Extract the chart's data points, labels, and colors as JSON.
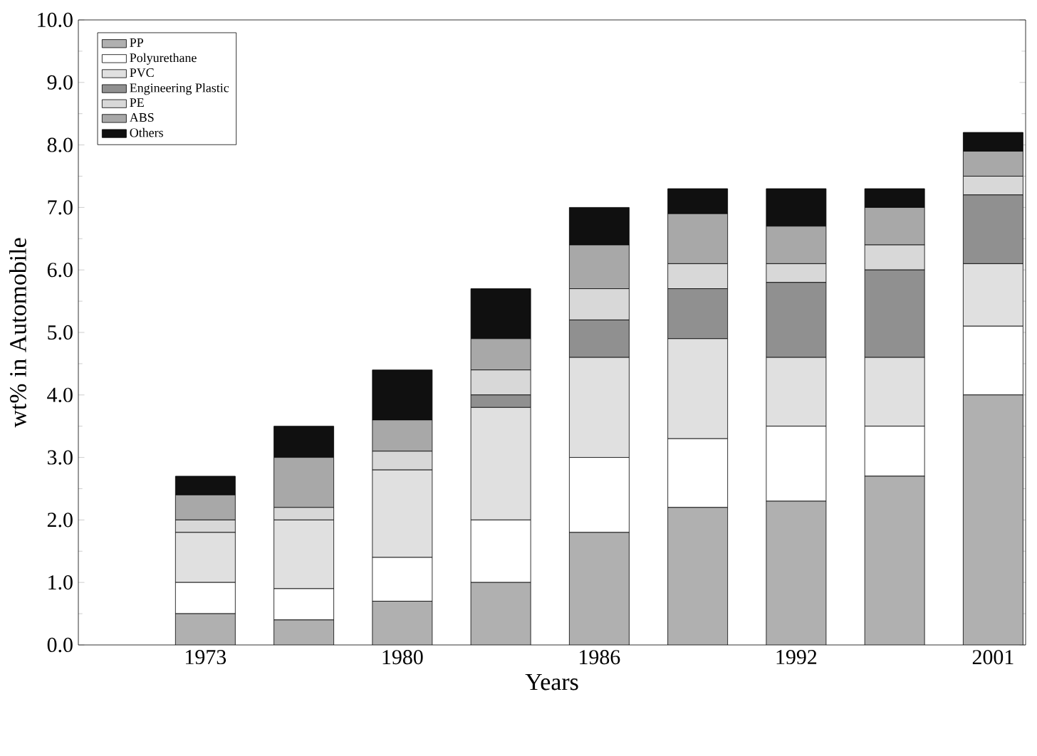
{
  "chart_data": {
    "type": "bar",
    "stacked": true,
    "xlabel": "Years",
    "ylabel": "wt% in Automobile",
    "categories": [
      "1973",
      null,
      "1980",
      null,
      "1986",
      null,
      "1992",
      null,
      "2001"
    ],
    "ylim": [
      0,
      10
    ],
    "yticks": [
      {
        "value": 0,
        "label": "0.0"
      },
      {
        "value": 1,
        "label": "1.0"
      },
      {
        "value": 2,
        "label": "2.0"
      },
      {
        "value": 3,
        "label": "3.0"
      },
      {
        "value": 4,
        "label": "4.0"
      },
      {
        "value": 5,
        "label": "5.0"
      },
      {
        "value": 6,
        "label": "6.0"
      },
      {
        "value": 7,
        "label": "7.0"
      },
      {
        "value": 8,
        "label": "8.0"
      },
      {
        "value": 9,
        "label": "9.0"
      },
      {
        "value": 10,
        "label": "10.0"
      }
    ],
    "legend": "top left",
    "series": [
      {
        "name": "PP",
        "color": "#b0b0b0",
        "values": [
          0.5,
          0.4,
          0.7,
          1.0,
          1.8,
          2.2,
          2.3,
          2.7,
          4.0
        ]
      },
      {
        "name": "Polyurethane",
        "color": "#ffffff",
        "values": [
          0.5,
          0.5,
          0.7,
          1.0,
          1.2,
          1.1,
          1.2,
          0.8,
          1.1
        ]
      },
      {
        "name": "PVC",
        "color": "#e0e0e0",
        "values": [
          0.8,
          1.1,
          1.4,
          1.8,
          1.6,
          1.6,
          1.1,
          1.1,
          1.0
        ]
      },
      {
        "name": "Engineering Plastic",
        "color": "#909090",
        "values": [
          0,
          0,
          0,
          0.2,
          0.6,
          0.8,
          1.2,
          1.4,
          1.1
        ]
      },
      {
        "name": "PE",
        "color": "#d8d8d8",
        "values": [
          0.2,
          0.2,
          0.3,
          0.4,
          0.5,
          0.4,
          0.3,
          0.4,
          0.3
        ]
      },
      {
        "name": "ABS",
        "color": "#a8a8a8",
        "values": [
          0.4,
          0.8,
          0.5,
          0.5,
          0.7,
          0.8,
          0.6,
          0.6,
          0.4
        ]
      },
      {
        "name": "Others",
        "color": "#101010",
        "values": [
          0.3,
          0.5,
          0.8,
          0.8,
          0.6,
          0.4,
          0.6,
          0.3,
          0.3
        ]
      }
    ]
  }
}
